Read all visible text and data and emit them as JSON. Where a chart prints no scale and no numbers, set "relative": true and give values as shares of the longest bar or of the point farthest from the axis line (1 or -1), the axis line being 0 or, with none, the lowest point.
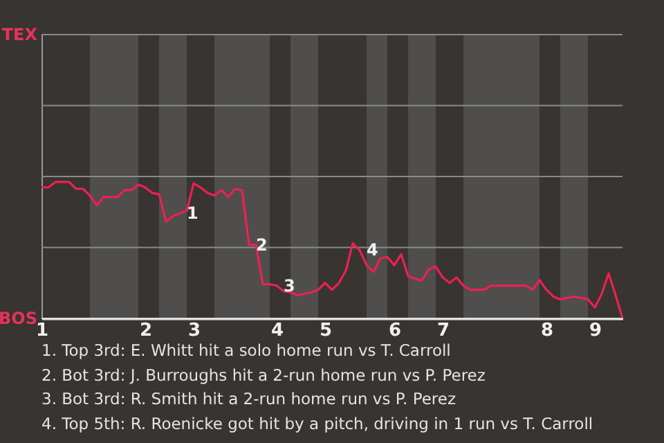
{
  "chart_data": {
    "type": "line",
    "categories": [
      "1",
      null,
      null,
      null,
      null,
      null,
      null,
      null,
      null,
      null,
      null,
      null,
      null,
      null,
      null,
      "2",
      null,
      null,
      null,
      null,
      null,
      null,
      "3",
      null,
      null,
      null,
      null,
      null,
      null,
      null,
      null,
      null,
      null,
      null,
      "4",
      null,
      null,
      null,
      null,
      null,
      null,
      "5",
      null,
      null,
      null,
      null,
      null,
      null,
      null,
      null,
      null,
      "6",
      null,
      null,
      null,
      null,
      null,
      null,
      "7",
      null,
      null,
      null,
      null,
      null,
      null,
      null,
      null,
      null,
      null,
      null,
      null,
      null,
      null,
      "8",
      null,
      null,
      null,
      null,
      null,
      null,
      "9",
      null,
      null,
      null,
      null
    ],
    "relative": true,
    "series": [
      {
        "color": "#ee2050",
        "values": [
          0.96,
          0.96,
          1,
          1,
          1,
          0.95,
          0.95,
          0.9,
          0.83,
          0.89,
          0.89,
          0.89,
          0.94,
          0.94,
          0.98,
          0.96,
          0.92,
          0.91,
          0.71,
          0.75,
          0.77,
          0.79,
          0.99,
          0.96,
          0.92,
          0.9,
          0.94,
          0.89,
          0.95,
          0.94,
          0.54,
          0.54,
          0.25,
          0.25,
          0.24,
          0.2,
          0.19,
          0.17,
          0.18,
          0.19,
          0.21,
          0.26,
          0.21,
          0.26,
          0.35,
          0.55,
          0.5,
          0.39,
          0.34,
          0.44,
          0.45,
          0.39,
          0.47,
          0.31,
          0.29,
          0.28,
          0.36,
          0.38,
          0.3,
          0.26,
          0.3,
          0.24,
          0.21,
          0.21,
          0.21,
          0.24,
          0.24,
          0.24,
          0.24,
          0.24,
          0.24,
          0.21,
          0.28,
          0.21,
          0.16,
          0.14,
          0.15,
          0.16,
          0.15,
          0.14,
          0.08,
          0.18,
          0.33,
          0.17,
          0
        ]
      }
    ],
    "marker": "none",
    "ref_lines": [
      {
        "axis": "y",
        "value": 0,
        "label": "BOS",
        "color": "#e0e0e0"
      },
      {
        "axis": "y",
        "value": 0.52,
        "label": null,
        "color": "#8a8a8a"
      },
      {
        "axis": "y",
        "value": 1.04,
        "label": null,
        "color": "#8a8a8a"
      },
      {
        "axis": "y",
        "value": 1.56,
        "label": null,
        "color": "#8a8a8a"
      },
      {
        "axis": "y",
        "value": 2.08,
        "label": "TEX",
        "color": "#8a8a8a"
      }
    ],
    "annotations": [
      {
        "text": "1",
        "y": 0.77
      },
      {
        "text": "2",
        "y": 0.54
      },
      {
        "text": "3",
        "y": 0.24
      },
      {
        "text": "4",
        "y": 0.5
      },
      "1. Top 3rd: E. Whitt hit a solo home run vs T. Carroll",
      "2. Bot 3rd: J. Burroughs hit a 2-run home run vs P. Perez",
      "3. Bot 3rd: R. Smith hit a 2-run home run vs P. Perez",
      "4. Top 5th: R. Roenicke got hit by a pitch, driving in 1 run vs T. Carroll"
    ]
  }
}
